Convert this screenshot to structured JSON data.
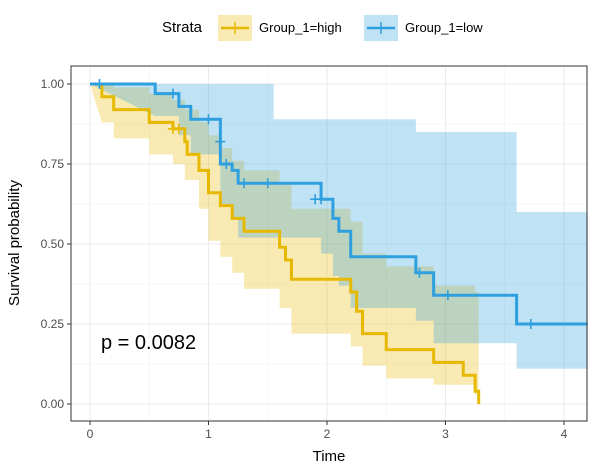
{
  "chart_data": {
    "type": "line",
    "subtype": "kaplan-meier survival curve with confidence bands",
    "xlabel": "Time",
    "ylabel": "Survival probability",
    "xlim": [
      -0.1,
      4.2
    ],
    "ylim": [
      -0.03,
      1.05
    ],
    "xticks": [
      0,
      1,
      2,
      3,
      4
    ],
    "yticks": [
      0.0,
      0.25,
      0.5,
      0.75,
      1.0
    ],
    "ytick_labels": [
      "0.00",
      "0.25",
      "0.50",
      "0.75",
      "1.00"
    ],
    "grid": true,
    "legend": {
      "title": "Strata",
      "position": "top"
    },
    "annotation": "p = 0.0082",
    "series": [
      {
        "name": "Group_1=high",
        "color": "#E7B800",
        "band_color": "#E7B800",
        "steps": [
          [
            0,
            1.0
          ],
          [
            0.1,
            1.0
          ],
          [
            0.1,
            0.96
          ],
          [
            0.2,
            0.96
          ],
          [
            0.2,
            0.92
          ],
          [
            0.5,
            0.92
          ],
          [
            0.5,
            0.88
          ],
          [
            0.7,
            0.88
          ],
          [
            0.7,
            0.86
          ],
          [
            0.8,
            0.86
          ],
          [
            0.8,
            0.82
          ],
          [
            0.82,
            0.82
          ],
          [
            0.82,
            0.78
          ],
          [
            0.92,
            0.78
          ],
          [
            0.92,
            0.73
          ],
          [
            1.0,
            0.73
          ],
          [
            1.0,
            0.66
          ],
          [
            1.1,
            0.66
          ],
          [
            1.1,
            0.62
          ],
          [
            1.2,
            0.62
          ],
          [
            1.2,
            0.58
          ],
          [
            1.3,
            0.58
          ],
          [
            1.3,
            0.54
          ],
          [
            1.6,
            0.54
          ],
          [
            1.6,
            0.49
          ],
          [
            1.65,
            0.49
          ],
          [
            1.65,
            0.45
          ],
          [
            1.7,
            0.45
          ],
          [
            1.7,
            0.39
          ],
          [
            2.2,
            0.39
          ],
          [
            2.2,
            0.35
          ],
          [
            2.25,
            0.35
          ],
          [
            2.25,
            0.29
          ],
          [
            2.3,
            0.29
          ],
          [
            2.3,
            0.22
          ],
          [
            2.5,
            0.22
          ],
          [
            2.5,
            0.17
          ],
          [
            2.9,
            0.17
          ],
          [
            2.9,
            0.13
          ],
          [
            3.15,
            0.13
          ],
          [
            3.15,
            0.09
          ],
          [
            3.25,
            0.09
          ],
          [
            3.25,
            0.04
          ],
          [
            3.28,
            0.04
          ],
          [
            3.28,
            0.0
          ]
        ],
        "censor": [
          [
            0.7,
            0.86
          ],
          [
            0.75,
            0.86
          ]
        ],
        "upper": [
          [
            0,
            1.0
          ],
          [
            0.2,
            1.0
          ],
          [
            0.2,
            0.99
          ],
          [
            0.5,
            0.99
          ],
          [
            0.5,
            0.97
          ],
          [
            0.7,
            0.97
          ],
          [
            0.7,
            0.95
          ],
          [
            0.8,
            0.95
          ],
          [
            0.8,
            0.92
          ],
          [
            0.92,
            0.92
          ],
          [
            0.92,
            0.88
          ],
          [
            1.0,
            0.88
          ],
          [
            1.0,
            0.84
          ],
          [
            1.1,
            0.84
          ],
          [
            1.1,
            0.8
          ],
          [
            1.2,
            0.8
          ],
          [
            1.2,
            0.76
          ],
          [
            1.3,
            0.76
          ],
          [
            1.3,
            0.73
          ],
          [
            1.6,
            0.73
          ],
          [
            1.6,
            0.69
          ],
          [
            1.7,
            0.69
          ],
          [
            1.7,
            0.61
          ],
          [
            2.2,
            0.61
          ],
          [
            2.2,
            0.57
          ],
          [
            2.3,
            0.57
          ],
          [
            2.3,
            0.47
          ],
          [
            2.5,
            0.47
          ],
          [
            2.5,
            0.43
          ],
          [
            2.9,
            0.43
          ],
          [
            2.9,
            0.37
          ],
          [
            3.25,
            0.37
          ],
          [
            3.25,
            0.35
          ],
          [
            3.28,
            0.35
          ]
        ],
        "lower": [
          [
            0,
            1.0
          ],
          [
            0.1,
            0.88
          ],
          [
            0.2,
            0.88
          ],
          [
            0.2,
            0.83
          ],
          [
            0.5,
            0.83
          ],
          [
            0.5,
            0.78
          ],
          [
            0.7,
            0.78
          ],
          [
            0.7,
            0.75
          ],
          [
            0.8,
            0.75
          ],
          [
            0.8,
            0.7
          ],
          [
            0.92,
            0.7
          ],
          [
            0.92,
            0.61
          ],
          [
            1.0,
            0.61
          ],
          [
            1.0,
            0.51
          ],
          [
            1.1,
            0.51
          ],
          [
            1.1,
            0.46
          ],
          [
            1.2,
            0.46
          ],
          [
            1.2,
            0.41
          ],
          [
            1.3,
            0.41
          ],
          [
            1.3,
            0.36
          ],
          [
            1.6,
            0.36
          ],
          [
            1.6,
            0.3
          ],
          [
            1.7,
            0.3
          ],
          [
            1.7,
            0.22
          ],
          [
            2.2,
            0.22
          ],
          [
            2.2,
            0.18
          ],
          [
            2.3,
            0.18
          ],
          [
            2.3,
            0.12
          ],
          [
            2.5,
            0.12
          ],
          [
            2.5,
            0.08
          ],
          [
            2.9,
            0.08
          ],
          [
            2.9,
            0.06
          ],
          [
            3.25,
            0.06
          ],
          [
            3.25,
            0.03
          ],
          [
            3.28,
            0.03
          ]
        ]
      },
      {
        "name": "Group_1=low",
        "color": "#2E9FDF",
        "band_color": "#2E9FDF",
        "steps": [
          [
            0,
            1.0
          ],
          [
            0.55,
            1.0
          ],
          [
            0.55,
            0.97
          ],
          [
            0.75,
            0.97
          ],
          [
            0.75,
            0.93
          ],
          [
            0.85,
            0.93
          ],
          [
            0.85,
            0.89
          ],
          [
            1.1,
            0.89
          ],
          [
            1.1,
            0.75
          ],
          [
            1.2,
            0.75
          ],
          [
            1.2,
            0.73
          ],
          [
            1.25,
            0.73
          ],
          [
            1.25,
            0.69
          ],
          [
            1.95,
            0.69
          ],
          [
            1.95,
            0.64
          ],
          [
            2.05,
            0.64
          ],
          [
            2.05,
            0.58
          ],
          [
            2.1,
            0.58
          ],
          [
            2.1,
            0.54
          ],
          [
            2.2,
            0.54
          ],
          [
            2.2,
            0.46
          ],
          [
            2.75,
            0.46
          ],
          [
            2.75,
            0.41
          ],
          [
            2.9,
            0.41
          ],
          [
            2.9,
            0.34
          ],
          [
            3.6,
            0.34
          ],
          [
            3.6,
            0.25
          ],
          [
            4.2,
            0.25
          ]
        ],
        "censor": [
          [
            0.08,
            1.0
          ],
          [
            0.7,
            0.97
          ],
          [
            1.0,
            0.89
          ],
          [
            1.1,
            0.82
          ],
          [
            1.15,
            0.75
          ],
          [
            1.3,
            0.69
          ],
          [
            1.5,
            0.69
          ],
          [
            1.9,
            0.64
          ],
          [
            1.95,
            0.64
          ],
          [
            2.78,
            0.41
          ],
          [
            3.02,
            0.34
          ],
          [
            3.72,
            0.25
          ]
        ],
        "upper": [
          [
            0,
            1.0
          ],
          [
            4.2,
            1.0
          ]
        ],
        "upper_steps": [
          [
            0,
            1.0
          ],
          [
            1.55,
            1.0
          ],
          [
            1.55,
            0.89
          ],
          [
            2.75,
            0.89
          ],
          [
            2.75,
            0.85
          ],
          [
            3.6,
            0.85
          ],
          [
            3.6,
            0.6
          ],
          [
            4.2,
            0.6
          ]
        ],
        "lower": [
          [
            0,
            1.0
          ],
          [
            0.55,
            0.9
          ],
          [
            0.75,
            0.9
          ],
          [
            0.75,
            0.84
          ],
          [
            0.85,
            0.84
          ],
          [
            0.85,
            0.78
          ],
          [
            1.1,
            0.78
          ],
          [
            1.1,
            0.62
          ],
          [
            1.2,
            0.62
          ],
          [
            1.2,
            0.58
          ],
          [
            1.25,
            0.58
          ],
          [
            1.25,
            0.52
          ],
          [
            1.95,
            0.52
          ],
          [
            1.95,
            0.47
          ],
          [
            2.05,
            0.47
          ],
          [
            2.05,
            0.4
          ],
          [
            2.1,
            0.4
          ],
          [
            2.1,
            0.37
          ],
          [
            2.2,
            0.37
          ],
          [
            2.2,
            0.3
          ],
          [
            2.75,
            0.3
          ],
          [
            2.75,
            0.26
          ],
          [
            2.9,
            0.26
          ],
          [
            2.9,
            0.19
          ],
          [
            3.6,
            0.19
          ],
          [
            3.6,
            0.11
          ],
          [
            4.2,
            0.11
          ]
        ]
      }
    ]
  }
}
